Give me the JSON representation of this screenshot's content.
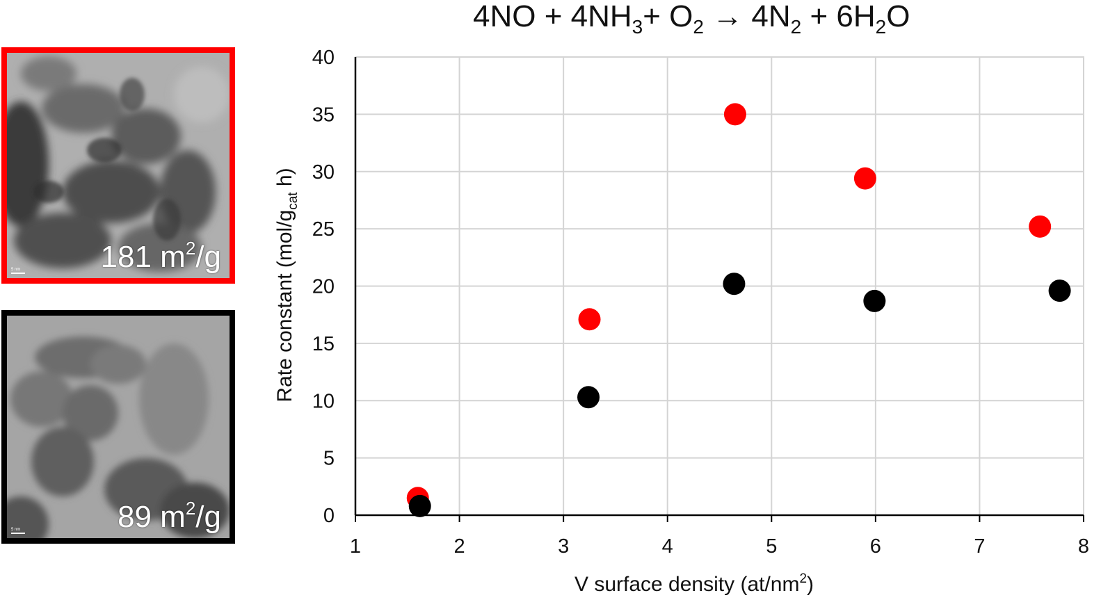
{
  "panels": [
    {
      "label_value": "181 m",
      "label_sup": "2",
      "label_tail": "/g",
      "scale_text": "5 nm",
      "border_color": "#ff0000"
    },
    {
      "label_value": "89 m",
      "label_sup": "2",
      "label_tail": "/g",
      "scale_text": "5 nm",
      "border_color": "#000000"
    }
  ],
  "chart_data": {
    "type": "scatter",
    "title_parts": [
      "4NO + 4NH",
      "3",
      "+ O",
      "2",
      " → 4N",
      "2",
      " + 6H",
      "2",
      "O"
    ],
    "ylabel_parts": [
      "Rate constant (mol/g",
      "cat",
      " h)"
    ],
    "xlabel_parts": [
      "V surface density (at/nm",
      "2",
      ")"
    ],
    "xlim": [
      1,
      8
    ],
    "ylim": [
      0,
      40
    ],
    "xticks": [
      1,
      2,
      3,
      4,
      5,
      6,
      7,
      8
    ],
    "yticks": [
      0,
      5,
      10,
      15,
      20,
      25,
      30,
      35,
      40
    ],
    "grid": true,
    "series": [
      {
        "color": "#ff0000",
        "x": [
          1.6,
          3.25,
          4.65,
          5.9,
          7.58
        ],
        "y": [
          1.5,
          17.1,
          35.0,
          29.4,
          25.2
        ]
      },
      {
        "color": "#000000",
        "x": [
          1.62,
          3.24,
          4.64,
          5.99,
          7.77
        ],
        "y": [
          0.8,
          10.3,
          20.2,
          18.7,
          19.6
        ]
      }
    ]
  }
}
